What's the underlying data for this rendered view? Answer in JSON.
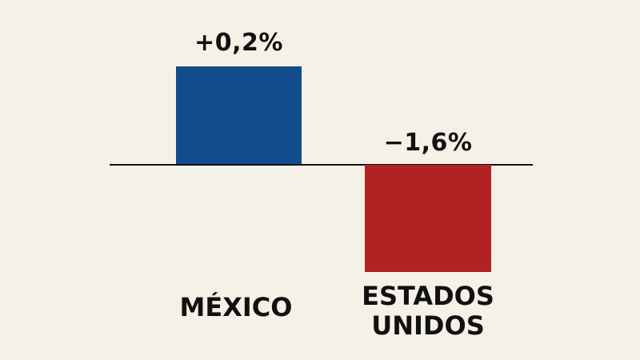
{
  "chart_data": {
    "type": "bar",
    "title": "",
    "xlabel": "",
    "ylabel": "",
    "categories": [
      "MÉXICO",
      "ESTADOS UNIDOS"
    ],
    "values": [
      0.2,
      -1.6
    ],
    "value_labels": [
      "+0,2%",
      "−1,6%"
    ],
    "colors": [
      "#134c8c",
      "#b22222"
    ],
    "grid": false,
    "legend": null,
    "baseline": 0
  },
  "labels": {
    "mexico_value": "+0,2%",
    "us_value": "−1,6%",
    "mexico_name": "MÉXICO",
    "us_name_line1": "ESTADOS",
    "us_name_line2": "UNIDOS"
  },
  "colors": {
    "background": "#f6f1e7",
    "mexico": "#134c8c",
    "us": "#b22222",
    "axis": "#111111"
  }
}
